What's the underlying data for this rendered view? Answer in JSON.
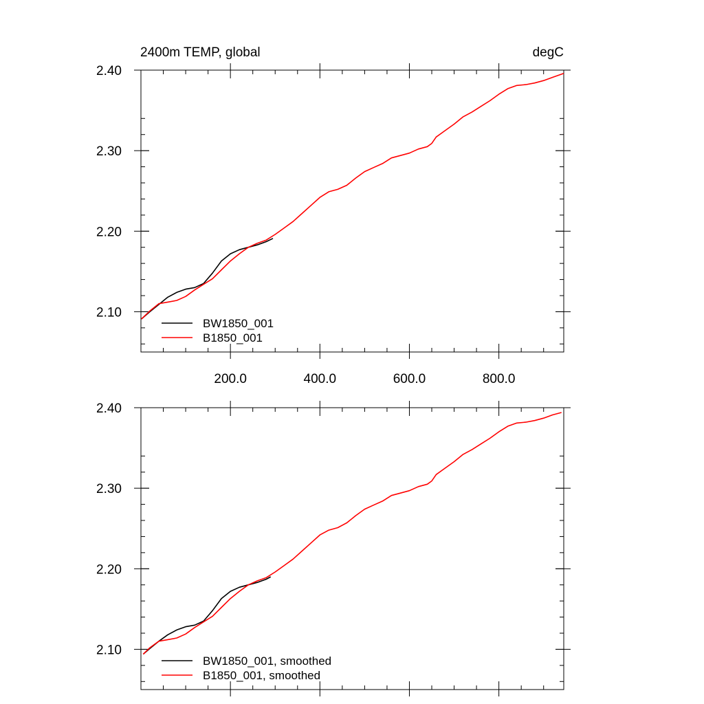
{
  "chart_data": [
    {
      "type": "line",
      "title": "2400m TEMP, global",
      "units": "degC",
      "xlabel": "",
      "ylabel": "",
      "xlim": [
        0,
        945
      ],
      "ylim": [
        2.05,
        2.4
      ],
      "x_ticks": [
        200,
        400,
        600,
        800
      ],
      "x_tick_labels": [
        "200.0",
        "400.0",
        "600.0",
        "800.0"
      ],
      "y_ticks": [
        2.1,
        2.2,
        2.3,
        2.4
      ],
      "y_tick_labels": [
        "2.10",
        "2.20",
        "2.30",
        "2.40"
      ],
      "grid": false,
      "legend_position": "bottom-left",
      "series": [
        {
          "name": "BW1850_001",
          "color": "#000000",
          "x": [
            1,
            20,
            40,
            60,
            80,
            100,
            120,
            140,
            160,
            180,
            200,
            220,
            240,
            260,
            280,
            295
          ],
          "y": [
            2.091,
            2.1,
            2.109,
            2.118,
            2.124,
            2.128,
            2.13,
            2.135,
            2.148,
            2.163,
            2.172,
            2.177,
            2.18,
            2.183,
            2.187,
            2.191
          ]
        },
        {
          "name": "B1850_001",
          "color": "#ff0000",
          "x": [
            1,
            20,
            40,
            60,
            80,
            100,
            120,
            140,
            160,
            180,
            200,
            220,
            240,
            260,
            280,
            300,
            320,
            340,
            360,
            380,
            400,
            420,
            440,
            460,
            480,
            500,
            520,
            540,
            560,
            580,
            600,
            620,
            640,
            650,
            660,
            680,
            700,
            720,
            740,
            760,
            780,
            800,
            820,
            840,
            860,
            880,
            900,
            920,
            945
          ],
          "y": [
            2.091,
            2.101,
            2.11,
            2.112,
            2.114,
            2.119,
            2.127,
            2.134,
            2.141,
            2.152,
            2.163,
            2.172,
            2.18,
            2.185,
            2.189,
            2.196,
            2.204,
            2.212,
            2.222,
            2.232,
            2.242,
            2.249,
            2.252,
            2.257,
            2.266,
            2.274,
            2.279,
            2.284,
            2.291,
            2.294,
            2.297,
            2.302,
            2.305,
            2.309,
            2.317,
            2.325,
            2.333,
            2.342,
            2.348,
            2.355,
            2.362,
            2.37,
            2.377,
            2.381,
            2.382,
            2.384,
            2.387,
            2.391,
            2.396
          ]
        }
      ]
    },
    {
      "type": "line",
      "title": "",
      "xlabel": "",
      "ylabel": "",
      "xlim": [
        0,
        945
      ],
      "ylim": [
        2.05,
        2.4
      ],
      "x_ticks": [
        200,
        400,
        600,
        800
      ],
      "x_tick_labels": [],
      "y_ticks": [
        2.1,
        2.2,
        2.3,
        2.4
      ],
      "y_tick_labels": [
        "2.10",
        "2.20",
        "2.30",
        "2.40"
      ],
      "grid": false,
      "legend_position": "bottom-left",
      "series": [
        {
          "name": "BW1850_001, smoothed",
          "color": "#000000",
          "x": [
            5,
            20,
            40,
            60,
            80,
            100,
            120,
            140,
            160,
            180,
            200,
            220,
            240,
            260,
            280,
            290
          ],
          "y": [
            2.094,
            2.101,
            2.11,
            2.118,
            2.124,
            2.128,
            2.13,
            2.135,
            2.148,
            2.163,
            2.172,
            2.177,
            2.18,
            2.183,
            2.187,
            2.19
          ]
        },
        {
          "name": "B1850_001, smoothed",
          "color": "#ff0000",
          "x": [
            5,
            20,
            40,
            60,
            80,
            100,
            120,
            140,
            160,
            180,
            200,
            220,
            240,
            260,
            280,
            300,
            320,
            340,
            360,
            380,
            400,
            420,
            440,
            460,
            480,
            500,
            520,
            540,
            560,
            580,
            600,
            620,
            640,
            650,
            660,
            680,
            700,
            720,
            740,
            760,
            780,
            800,
            820,
            840,
            860,
            880,
            900,
            920,
            940
          ],
          "y": [
            2.094,
            2.102,
            2.11,
            2.112,
            2.114,
            2.119,
            2.127,
            2.134,
            2.141,
            2.152,
            2.163,
            2.172,
            2.18,
            2.185,
            2.189,
            2.196,
            2.204,
            2.212,
            2.222,
            2.232,
            2.242,
            2.248,
            2.251,
            2.257,
            2.266,
            2.274,
            2.279,
            2.284,
            2.291,
            2.294,
            2.297,
            2.302,
            2.305,
            2.309,
            2.317,
            2.325,
            2.333,
            2.342,
            2.348,
            2.355,
            2.362,
            2.37,
            2.377,
            2.381,
            2.382,
            2.384,
            2.387,
            2.391,
            2.394
          ]
        }
      ]
    }
  ]
}
